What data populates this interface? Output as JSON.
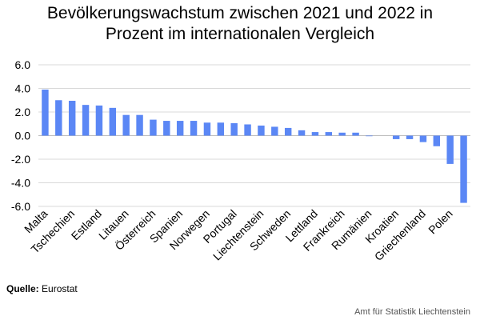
{
  "title_line1": "Bevölkerungswachstum zwischen 2021 und 2022 in",
  "title_line2": "Prozent im internationalen Vergleich",
  "source_label": "Quelle:",
  "source_value": "Eurostat",
  "credit": "Amt für Statistik Liechtenstein",
  "colors": {
    "bar": "#5b87f5",
    "grid": "#d9d9d9",
    "axis": "#bfbfbf"
  },
  "chart_data": {
    "type": "bar",
    "categories": [
      "Malta",
      "",
      "Tschechien",
      "",
      "Estland",
      "",
      "Litauen",
      "",
      "Österreich",
      "",
      "Spanien",
      "",
      "Norwegen",
      "",
      "Portugal",
      "",
      "Liechtenstein",
      "",
      "Schweden",
      "",
      "Lettland",
      "",
      "Frankreich",
      "",
      "Rumänien",
      "",
      "Kroatien",
      "",
      "Griechenland",
      "",
      "Polen",
      ""
    ],
    "values": [
      3.9,
      3.0,
      2.95,
      2.6,
      2.55,
      2.35,
      1.75,
      1.75,
      1.35,
      1.25,
      1.25,
      1.25,
      1.1,
      1.1,
      1.05,
      0.95,
      0.85,
      0.75,
      0.65,
      0.45,
      0.3,
      0.3,
      0.25,
      0.25,
      -0.05,
      0.0,
      -0.3,
      -0.3,
      -0.55,
      -0.9,
      -2.4,
      -5.7
    ],
    "yticks": [
      "6.0",
      "4.0",
      "2.0",
      "0.0",
      "-2.0",
      "-4.0",
      "-6.0"
    ],
    "ylim": [
      -6,
      6
    ],
    "grid": true,
    "legend": "none",
    "xlabel": "",
    "ylabel": ""
  }
}
